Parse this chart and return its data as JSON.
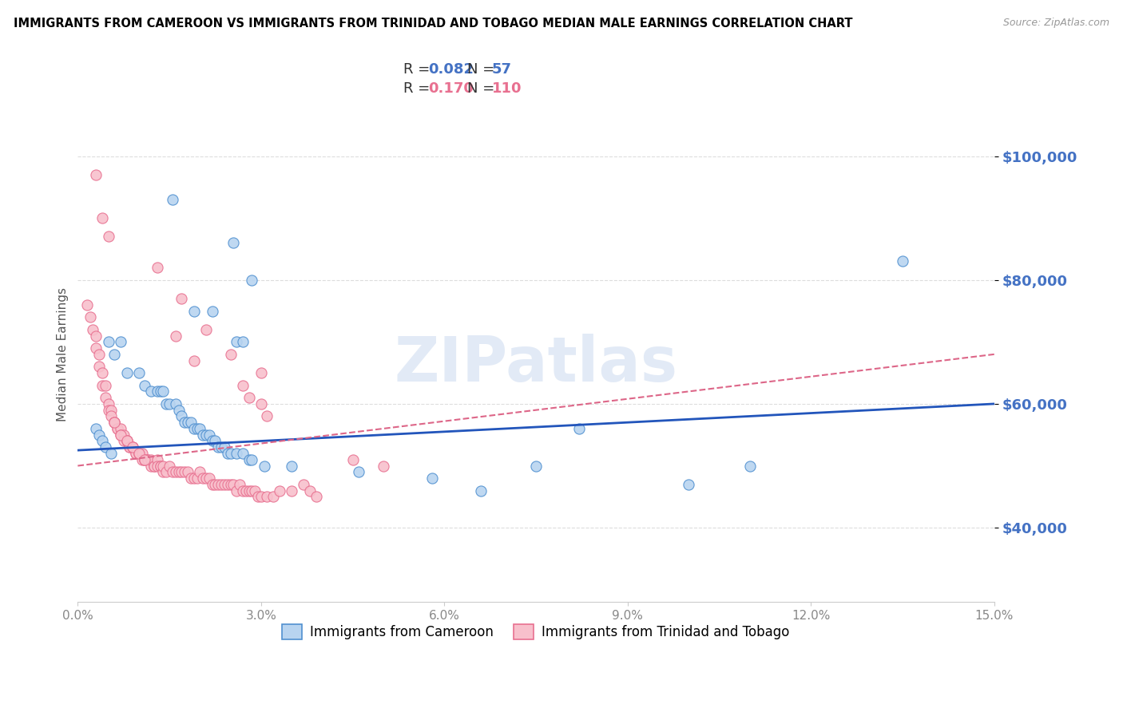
{
  "title": "IMMIGRANTS FROM CAMEROON VS IMMIGRANTS FROM TRINIDAD AND TOBAGO MEDIAN MALE EARNINGS CORRELATION CHART",
  "source": "Source: ZipAtlas.com",
  "ylabel": "Median Male Earnings",
  "ytick_labels": [
    "$40,000",
    "$60,000",
    "$80,000",
    "$100,000"
  ],
  "ytick_values": [
    40000,
    60000,
    80000,
    100000
  ],
  "ylim": [
    28000,
    108000
  ],
  "xlim": [
    0.0,
    15.0
  ],
  "legend1_R": "0.082",
  "legend1_N": "57",
  "legend2_R": "0.170",
  "legend2_N": "110",
  "color_blue_fill": "#B8D4F0",
  "color_blue_edge": "#5090D0",
  "color_pink_fill": "#F8C0CC",
  "color_pink_edge": "#E87090",
  "color_line_blue": "#2255BB",
  "color_line_pink": "#DD6688",
  "watermark": "ZIPatlas",
  "legend_label_blue": "Immigrants from Cameroon",
  "legend_label_pink": "Immigrants from Trinidad and Tobago",
  "blue_line_x0": 0.0,
  "blue_line_y0": 52500,
  "blue_line_x1": 15.0,
  "blue_line_y1": 60000,
  "pink_line_x0": 0.0,
  "pink_line_y0": 50000,
  "pink_line_x1": 15.0,
  "pink_line_y1": 68000,
  "blue_pts_x": [
    1.55,
    2.55,
    2.85,
    2.2,
    1.9,
    2.6,
    2.7,
    0.5,
    0.7,
    0.6,
    0.8,
    1.0,
    1.1,
    1.2,
    1.3,
    1.35,
    1.4,
    1.45,
    1.5,
    1.6,
    1.65,
    1.7,
    1.75,
    1.8,
    1.85,
    1.9,
    1.95,
    2.0,
    2.05,
    2.1,
    2.15,
    2.2,
    2.25,
    2.3,
    2.35,
    2.4,
    2.45,
    2.5,
    2.6,
    2.7,
    2.8,
    2.85,
    3.05,
    3.5,
    4.6,
    5.8,
    6.6,
    7.5,
    8.2,
    10.0,
    11.0,
    13.5,
    0.3,
    0.35,
    0.4,
    0.45,
    0.55
  ],
  "blue_pts_y": [
    93000,
    86000,
    80000,
    75000,
    75000,
    70000,
    70000,
    70000,
    70000,
    68000,
    65000,
    65000,
    63000,
    62000,
    62000,
    62000,
    62000,
    60000,
    60000,
    60000,
    59000,
    58000,
    57000,
    57000,
    57000,
    56000,
    56000,
    56000,
    55000,
    55000,
    55000,
    54000,
    54000,
    53000,
    53000,
    53000,
    52000,
    52000,
    52000,
    52000,
    51000,
    51000,
    50000,
    50000,
    49000,
    48000,
    46000,
    50000,
    56000,
    47000,
    50000,
    83000,
    56000,
    55000,
    54000,
    53000,
    52000
  ],
  "pink_pts_x": [
    0.15,
    0.2,
    0.25,
    0.3,
    0.3,
    0.35,
    0.35,
    0.4,
    0.4,
    0.45,
    0.45,
    0.5,
    0.5,
    0.55,
    0.55,
    0.6,
    0.6,
    0.65,
    0.65,
    0.7,
    0.7,
    0.75,
    0.75,
    0.8,
    0.8,
    0.85,
    0.85,
    0.9,
    0.9,
    0.95,
    0.95,
    1.0,
    1.0,
    1.05,
    1.05,
    1.1,
    1.1,
    1.15,
    1.15,
    1.2,
    1.2,
    1.25,
    1.25,
    1.3,
    1.3,
    1.35,
    1.35,
    1.4,
    1.4,
    1.45,
    1.5,
    1.55,
    1.6,
    1.65,
    1.7,
    1.75,
    1.8,
    1.85,
    1.9,
    1.95,
    2.0,
    2.05,
    2.1,
    2.15,
    2.2,
    2.25,
    2.3,
    2.35,
    2.4,
    2.45,
    2.5,
    2.55,
    2.6,
    2.65,
    2.7,
    2.75,
    2.8,
    2.85,
    2.9,
    2.95,
    3.0,
    3.1,
    3.2,
    3.3,
    3.5,
    3.7,
    3.8,
    3.9,
    4.5,
    5.0,
    1.6,
    1.9,
    2.1,
    2.5,
    3.0,
    0.3,
    0.4,
    0.5,
    1.3,
    1.7,
    2.7,
    2.8,
    3.0,
    3.1,
    0.6,
    0.7,
    0.8,
    0.9,
    1.0,
    1.1
  ],
  "pink_pts_y": [
    76000,
    74000,
    72000,
    71000,
    69000,
    68000,
    66000,
    65000,
    63000,
    63000,
    61000,
    60000,
    59000,
    59000,
    58000,
    57000,
    57000,
    56000,
    56000,
    56000,
    55000,
    55000,
    54000,
    54000,
    54000,
    53000,
    53000,
    53000,
    53000,
    52000,
    52000,
    52000,
    52000,
    52000,
    51000,
    51000,
    51000,
    51000,
    51000,
    50000,
    51000,
    50000,
    50000,
    51000,
    50000,
    50000,
    50000,
    49000,
    50000,
    49000,
    50000,
    49000,
    49000,
    49000,
    49000,
    49000,
    49000,
    48000,
    48000,
    48000,
    49000,
    48000,
    48000,
    48000,
    47000,
    47000,
    47000,
    47000,
    47000,
    47000,
    47000,
    47000,
    46000,
    47000,
    46000,
    46000,
    46000,
    46000,
    46000,
    45000,
    45000,
    45000,
    45000,
    46000,
    46000,
    47000,
    46000,
    45000,
    51000,
    50000,
    71000,
    67000,
    72000,
    68000,
    65000,
    97000,
    90000,
    87000,
    82000,
    77000,
    63000,
    61000,
    60000,
    58000,
    57000,
    55000,
    54000,
    53000,
    52000,
    51000
  ]
}
